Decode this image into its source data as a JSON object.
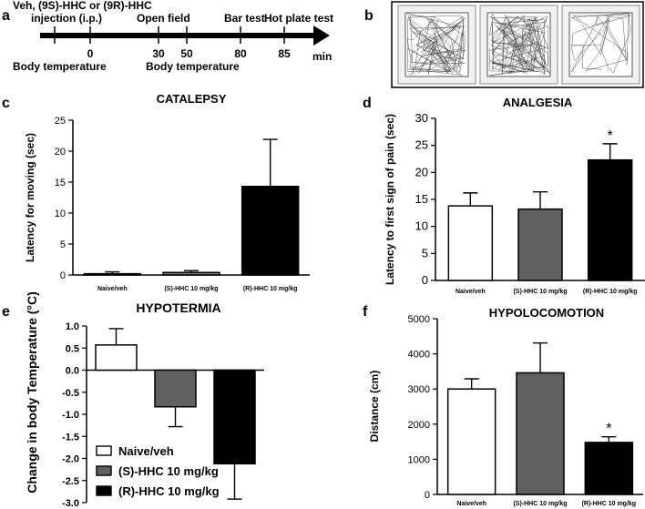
{
  "panel_letters": {
    "a": "a",
    "b": "b",
    "c": "c",
    "d": "d",
    "e": "e",
    "f": "f"
  },
  "timeline": {
    "treatment_line1": "Veh, (9S)-HHC or (9R)-HHC",
    "treatment_line2": "injection (i.p.)",
    "unit": "min",
    "ticks": [
      "0",
      "30",
      "50",
      "80",
      "85"
    ],
    "events_above": [
      "Open field",
      "Bar test",
      "Hot plate test"
    ],
    "events_below": [
      "Body temperature",
      "Body temperature"
    ]
  },
  "chart_data": [
    {
      "id": "c",
      "type": "bar",
      "title": "CATALEPSY",
      "ylabel": "Latency for moving (sec)",
      "xlabel": "",
      "categories": [
        "Naive/veh",
        "(S)-HHC 10 mg/kg",
        "(R)-HHC 10 mg/kg"
      ],
      "values": [
        0.2,
        0.4,
        14.3
      ],
      "errors": [
        0.3,
        0.3,
        7.6
      ],
      "ylim": [
        0,
        25
      ],
      "yticks": [
        "0",
        "5",
        "10",
        "15",
        "20",
        "25"
      ],
      "colors": [
        "#ffffff",
        "#808080",
        "#000000"
      ],
      "significance": [
        "",
        "",
        ""
      ]
    },
    {
      "id": "d",
      "type": "bar",
      "title": "ANALGESIA",
      "ylabel": "Latency to first sign of pain (sec)",
      "xlabel": "",
      "categories": [
        "Naive/veh",
        "(S)-HHC 10 mg/kg",
        "(R)-HHC 10 mg/kg"
      ],
      "values": [
        13.8,
        13.2,
        22.3
      ],
      "errors": [
        2.4,
        3.2,
        3.0
      ],
      "ylim": [
        0,
        30
      ],
      "yticks": [
        "0",
        "5",
        "10",
        "15",
        "20",
        "25",
        "30"
      ],
      "colors": [
        "#ffffff",
        "#606060",
        "#000000"
      ],
      "significance": [
        "",
        "",
        "*"
      ]
    },
    {
      "id": "e",
      "type": "bar",
      "title": "HYPOTERMIA",
      "ylabel": "Change in body Temperature (°C)",
      "xlabel": "",
      "categories": [
        "Naive/veh",
        "(S)-HHC 10 mg/kg",
        "(R)-HHC 10 mg/kg"
      ],
      "values": [
        0.57,
        -0.83,
        -2.12
      ],
      "errors": [
        0.37,
        0.45,
        0.8
      ],
      "ylim": [
        -3.0,
        1.0
      ],
      "yticks": [
        "-3.0",
        "-2.5",
        "-2.0",
        "-1.5",
        "-1.0",
        "-0.5",
        "0.0",
        "0.5",
        "1.0"
      ],
      "colors": [
        "#ffffff",
        "#606060",
        "#000000"
      ],
      "legend": [
        "Naive/veh",
        "(S)-HHC 10 mg/kg",
        "(R)-HHC 10 mg/kg"
      ],
      "legend_position": "bottom-left"
    },
    {
      "id": "f",
      "type": "bar",
      "title": "HYPOLOCOMOTION",
      "ylabel": "Distance (cm)",
      "xlabel": "",
      "categories": [
        "Naive/veh",
        "(S)-HHC 10 mg/kg",
        "(R)-HHC 10 mg/kg"
      ],
      "values": [
        3000,
        3460,
        1480
      ],
      "errors": [
        290,
        850,
        160
      ],
      "ylim": [
        0,
        5000
      ],
      "yticks": [
        "0",
        "1000",
        "2000",
        "3000",
        "4000",
        "5000"
      ],
      "colors": [
        "#ffffff",
        "#606060",
        "#000000"
      ],
      "significance": [
        "",
        "",
        "*"
      ]
    }
  ]
}
